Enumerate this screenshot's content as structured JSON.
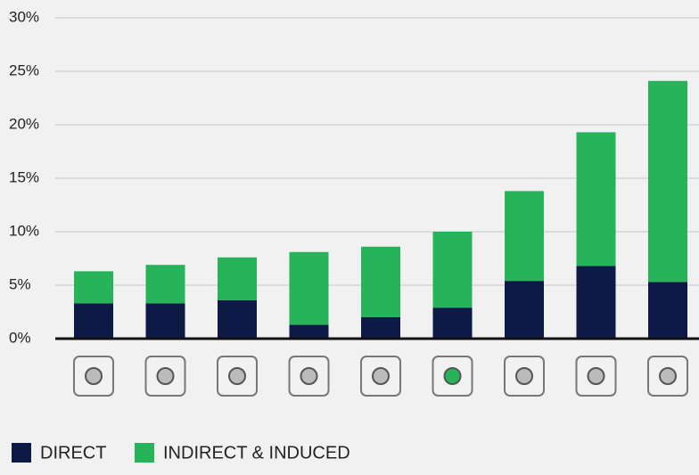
{
  "chart_data": {
    "type": "stacked-bar",
    "categories": [
      null,
      null,
      null,
      null,
      null,
      null,
      null,
      null,
      null
    ],
    "series": [
      {
        "name": "DIRECT",
        "color": "#0d1a45",
        "values": [
          3.3,
          3.3,
          3.6,
          1.3,
          2.0,
          2.9,
          5.4,
          6.8,
          5.3
        ]
      },
      {
        "name": "INDIRECT & INDUCED",
        "color": "#27b35a",
        "values": [
          3.0,
          3.6,
          4.0,
          6.8,
          6.6,
          7.1,
          8.4,
          12.5,
          18.8
        ]
      }
    ],
    "ylim": [
      0,
      30
    ],
    "yticks": [
      {
        "value": 0,
        "label": "0%"
      },
      {
        "value": 5,
        "label": "5%"
      },
      {
        "value": 10,
        "label": "10%"
      },
      {
        "value": 15,
        "label": "15%"
      },
      {
        "value": 20,
        "label": "20%"
      },
      {
        "value": 25,
        "label": "25%"
      },
      {
        "value": 30,
        "label": "30%"
      }
    ],
    "grid": true,
    "legend": "bottom-left"
  }
}
